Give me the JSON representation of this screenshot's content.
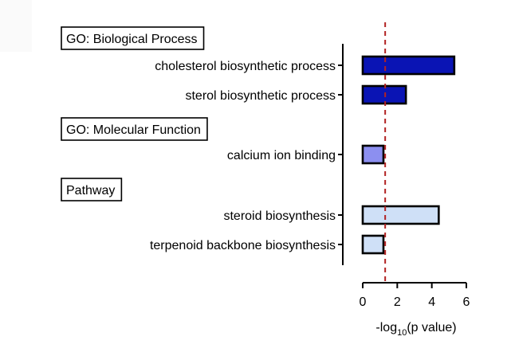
{
  "chart_data": {
    "type": "bar",
    "orientation": "horizontal",
    "xlabel": {
      "prefix": "-log",
      "sub": "10",
      "suffix": "(p value)"
    },
    "xlim": [
      0,
      6
    ],
    "xticks": [
      0,
      2,
      4,
      6
    ],
    "threshold": 1.3,
    "threshold_color": "#b22222",
    "sections": [
      {
        "label": "GO: Biological Process"
      },
      {
        "label": "GO: Molecular Function"
      },
      {
        "label": "Pathway"
      }
    ],
    "categories": [
      {
        "label": "cholesterol biosynthetic process",
        "value": 5.3,
        "color": "#0a14b4",
        "section": 0
      },
      {
        "label": "sterol biosynthetic process",
        "value": 2.5,
        "color": "#0a14b4",
        "section": 0
      },
      {
        "label": "calcium ion binding",
        "value": 1.2,
        "color": "#8c8ff0",
        "section": 1
      },
      {
        "label": "steroid biosynthesis",
        "value": 4.4,
        "color": "#cfe0f7",
        "section": 2
      },
      {
        "label": "terpenoid backbone biosynthesis",
        "value": 1.2,
        "color": "#cfe0f7",
        "section": 2
      }
    ]
  }
}
